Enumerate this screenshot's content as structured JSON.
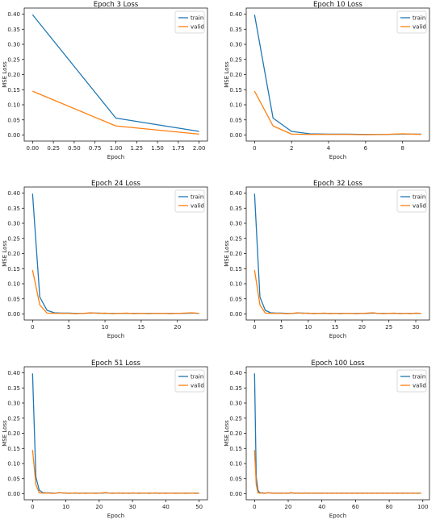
{
  "colors": {
    "train": "#1f77b4",
    "valid": "#ff7f0e"
  },
  "chart_data": [
    {
      "type": "line",
      "title": "Epoch 3 Loss",
      "xlabel": "Epoch",
      "ylabel": "MSE Loss",
      "xlim": [
        -0.1,
        2.1
      ],
      "ylim": [
        -0.02,
        0.42
      ],
      "xticks": [
        0.0,
        0.25,
        0.5,
        0.75,
        1.0,
        1.25,
        1.5,
        1.75,
        2.0
      ],
      "xtick_labels": [
        "0.00",
        "0.25",
        "0.50",
        "0.75",
        "1.00",
        "1.25",
        "1.50",
        "1.75",
        "2.00"
      ],
      "yticks": [
        0.0,
        0.05,
        0.1,
        0.15,
        0.2,
        0.25,
        0.3,
        0.35,
        0.4
      ],
      "ytick_labels": [
        "0.00",
        "0.05",
        "0.10",
        "0.15",
        "0.20",
        "0.25",
        "0.30",
        "0.35",
        "0.40"
      ],
      "legend": "top-right",
      "grid": false,
      "series": [
        {
          "name": "train",
          "x": [
            0,
            1,
            2
          ],
          "y": [
            0.398,
            0.056,
            0.012
          ]
        },
        {
          "name": "valid",
          "x": [
            0,
            1,
            2
          ],
          "y": [
            0.145,
            0.03,
            0.003
          ]
        }
      ]
    },
    {
      "type": "line",
      "title": "Epoch 10 Loss",
      "xlabel": "Epoch",
      "ylabel": "MSE Loss",
      "xlim": [
        -0.45,
        9.45
      ],
      "ylim": [
        -0.02,
        0.42
      ],
      "xticks": [
        0,
        2,
        4,
        6,
        8
      ],
      "xtick_labels": [
        "0",
        "2",
        "4",
        "6",
        "8"
      ],
      "yticks": [
        0.0,
        0.05,
        0.1,
        0.15,
        0.2,
        0.25,
        0.3,
        0.35,
        0.4
      ],
      "ytick_labels": [
        "0.00",
        "0.05",
        "0.10",
        "0.15",
        "0.20",
        "0.25",
        "0.30",
        "0.35",
        "0.40"
      ],
      "legend": "top-right",
      "grid": false,
      "series": [
        {
          "name": "train",
          "x": [
            0,
            1,
            2,
            3,
            4,
            5,
            6,
            7,
            8,
            9
          ],
          "y": [
            0.398,
            0.056,
            0.012,
            0.004,
            0.003,
            0.003,
            0.002,
            0.002,
            0.003,
            0.003
          ]
        },
        {
          "name": "valid",
          "x": [
            0,
            1,
            2,
            3,
            4,
            5,
            6,
            7,
            8,
            9
          ],
          "y": [
            0.145,
            0.03,
            0.003,
            0.002,
            0.002,
            0.002,
            0.001,
            0.002,
            0.004,
            0.002
          ]
        }
      ]
    },
    {
      "type": "line",
      "title": "Epoch 24 Loss",
      "xlabel": "Epoch",
      "ylabel": "MSE Loss",
      "xlim": [
        -1.15,
        24.15
      ],
      "ylim": [
        -0.02,
        0.42
      ],
      "xticks": [
        0,
        5,
        10,
        15,
        20
      ],
      "xtick_labels": [
        "0",
        "5",
        "10",
        "15",
        "20"
      ],
      "yticks": [
        0.0,
        0.05,
        0.1,
        0.15,
        0.2,
        0.25,
        0.3,
        0.35,
        0.4
      ],
      "ytick_labels": [
        "0.00",
        "0.05",
        "0.10",
        "0.15",
        "0.20",
        "0.25",
        "0.30",
        "0.35",
        "0.40"
      ],
      "legend": "top-right",
      "grid": false,
      "series": [
        {
          "name": "train",
          "x": [
            0,
            1,
            2,
            3,
            4,
            5,
            6,
            7,
            8,
            9,
            10,
            11,
            12,
            13,
            14,
            15,
            16,
            17,
            18,
            19,
            20,
            21,
            22,
            23
          ],
          "y": [
            0.398,
            0.056,
            0.012,
            0.004,
            0.003,
            0.003,
            0.002,
            0.002,
            0.003,
            0.003,
            0.002,
            0.002,
            0.002,
            0.002,
            0.002,
            0.002,
            0.002,
            0.002,
            0.002,
            0.002,
            0.002,
            0.002,
            0.003,
            0.002
          ]
        },
        {
          "name": "valid",
          "x": [
            0,
            1,
            2,
            3,
            4,
            5,
            6,
            7,
            8,
            9,
            10,
            11,
            12,
            13,
            14,
            15,
            16,
            17,
            18,
            19,
            20,
            21,
            22,
            23
          ],
          "y": [
            0.145,
            0.03,
            0.003,
            0.002,
            0.002,
            0.002,
            0.001,
            0.002,
            0.004,
            0.002,
            0.003,
            0.001,
            0.002,
            0.003,
            0.001,
            0.002,
            0.001,
            0.002,
            0.002,
            0.001,
            0.002,
            0.003,
            0.004,
            0.002
          ]
        }
      ]
    },
    {
      "type": "line",
      "title": "Epoch 32 Loss",
      "xlabel": "Epoch",
      "ylabel": "MSE Loss",
      "xlim": [
        -1.55,
        32.55
      ],
      "ylim": [
        -0.02,
        0.42
      ],
      "xticks": [
        0,
        5,
        10,
        15,
        20,
        25,
        30
      ],
      "xtick_labels": [
        "0",
        "5",
        "10",
        "15",
        "20",
        "25",
        "30"
      ],
      "yticks": [
        0.0,
        0.05,
        0.1,
        0.15,
        0.2,
        0.25,
        0.3,
        0.35,
        0.4
      ],
      "ytick_labels": [
        "0.00",
        "0.05",
        "0.10",
        "0.15",
        "0.20",
        "0.25",
        "0.30",
        "0.35",
        "0.40"
      ],
      "legend": "top-right",
      "grid": false,
      "series": [
        {
          "name": "train",
          "x": [
            0,
            1,
            2,
            3,
            4,
            5,
            6,
            7,
            8,
            9,
            10,
            11,
            12,
            13,
            14,
            15,
            16,
            17,
            18,
            19,
            20,
            21,
            22,
            23,
            24,
            25,
            26,
            27,
            28,
            29,
            30,
            31
          ],
          "y": [
            0.398,
            0.056,
            0.012,
            0.004,
            0.003,
            0.003,
            0.002,
            0.002,
            0.003,
            0.003,
            0.002,
            0.002,
            0.002,
            0.002,
            0.002,
            0.002,
            0.002,
            0.002,
            0.002,
            0.002,
            0.002,
            0.002,
            0.003,
            0.002,
            0.002,
            0.002,
            0.002,
            0.002,
            0.002,
            0.002,
            0.002,
            0.002
          ]
        },
        {
          "name": "valid",
          "x": [
            0,
            1,
            2,
            3,
            4,
            5,
            6,
            7,
            8,
            9,
            10,
            11,
            12,
            13,
            14,
            15,
            16,
            17,
            18,
            19,
            20,
            21,
            22,
            23,
            24,
            25,
            26,
            27,
            28,
            29,
            30,
            31
          ],
          "y": [
            0.145,
            0.03,
            0.003,
            0.002,
            0.002,
            0.002,
            0.001,
            0.002,
            0.004,
            0.002,
            0.003,
            0.001,
            0.002,
            0.003,
            0.001,
            0.002,
            0.001,
            0.002,
            0.002,
            0.001,
            0.002,
            0.003,
            0.004,
            0.002,
            0.001,
            0.002,
            0.003,
            0.001,
            0.002,
            0.001,
            0.003,
            0.002
          ]
        }
      ]
    },
    {
      "type": "line",
      "title": "Epoch 51 Loss",
      "xlabel": "Epoch",
      "ylabel": "MSE Loss",
      "xlim": [
        -2.5,
        52.5
      ],
      "ylim": [
        -0.02,
        0.42
      ],
      "xticks": [
        0,
        10,
        20,
        30,
        40,
        50
      ],
      "xtick_labels": [
        "0",
        "10",
        "20",
        "30",
        "40",
        "50"
      ],
      "yticks": [
        0.0,
        0.05,
        0.1,
        0.15,
        0.2,
        0.25,
        0.3,
        0.35,
        0.4
      ],
      "ytick_labels": [
        "0.00",
        "0.05",
        "0.10",
        "0.15",
        "0.20",
        "0.25",
        "0.30",
        "0.35",
        "0.40"
      ],
      "legend": "top-right",
      "grid": false,
      "series": [
        {
          "name": "train",
          "x_start": 0,
          "x_step": 1,
          "y": [
            0.398,
            0.056,
            0.012,
            0.004,
            0.003,
            0.003,
            0.002,
            0.002,
            0.003,
            0.003,
            0.002,
            0.002,
            0.002,
            0.002,
            0.002,
            0.002,
            0.002,
            0.002,
            0.002,
            0.002,
            0.002,
            0.002,
            0.003,
            0.002,
            0.002,
            0.002,
            0.002,
            0.002,
            0.002,
            0.002,
            0.002,
            0.002,
            0.002,
            0.002,
            0.002,
            0.002,
            0.002,
            0.002,
            0.002,
            0.002,
            0.002,
            0.002,
            0.002,
            0.002,
            0.002,
            0.002,
            0.002,
            0.002,
            0.002,
            0.002,
            0.002
          ]
        },
        {
          "name": "valid",
          "x_start": 0,
          "x_step": 1,
          "y": [
            0.145,
            0.03,
            0.003,
            0.002,
            0.002,
            0.002,
            0.001,
            0.002,
            0.004,
            0.002,
            0.003,
            0.001,
            0.002,
            0.003,
            0.001,
            0.002,
            0.001,
            0.002,
            0.002,
            0.001,
            0.002,
            0.003,
            0.004,
            0.002,
            0.001,
            0.002,
            0.003,
            0.001,
            0.002,
            0.001,
            0.003,
            0.002,
            0.001,
            0.002,
            0.002,
            0.001,
            0.002,
            0.003,
            0.001,
            0.002,
            0.001,
            0.002,
            0.002,
            0.001,
            0.002,
            0.002,
            0.001,
            0.002,
            0.002,
            0.001,
            0.002
          ]
        }
      ]
    },
    {
      "type": "line",
      "title": "Epoch 100 Loss",
      "xlabel": "Epoch",
      "ylabel": "MSE Loss",
      "xlim": [
        -4.95,
        103.95
      ],
      "ylim": [
        -0.02,
        0.42
      ],
      "xticks": [
        0,
        20,
        40,
        60,
        80,
        100
      ],
      "xtick_labels": [
        "0",
        "20",
        "40",
        "60",
        "80",
        "100"
      ],
      "yticks": [
        0.0,
        0.05,
        0.1,
        0.15,
        0.2,
        0.25,
        0.3,
        0.35,
        0.4
      ],
      "ytick_labels": [
        "0.00",
        "0.05",
        "0.10",
        "0.15",
        "0.20",
        "0.25",
        "0.30",
        "0.35",
        "0.40"
      ],
      "legend": "top-right",
      "grid": false,
      "series": [
        {
          "name": "train",
          "x_start": 0,
          "x_step": 1,
          "y": [
            0.398,
            0.056,
            0.012,
            0.004,
            0.003,
            0.003,
            0.002,
            0.002,
            0.003,
            0.003,
            0.002,
            0.002,
            0.002,
            0.002,
            0.002,
            0.002,
            0.002,
            0.002,
            0.002,
            0.002,
            0.002,
            0.002,
            0.003,
            0.002,
            0.002,
            0.002,
            0.002,
            0.002,
            0.002,
            0.002,
            0.002,
            0.002,
            0.002,
            0.002,
            0.002,
            0.002,
            0.002,
            0.002,
            0.002,
            0.002,
            0.002,
            0.002,
            0.002,
            0.002,
            0.002,
            0.002,
            0.002,
            0.002,
            0.002,
            0.002,
            0.002,
            0.002,
            0.002,
            0.002,
            0.002,
            0.002,
            0.002,
            0.002,
            0.002,
            0.002,
            0.002,
            0.002,
            0.002,
            0.002,
            0.002,
            0.002,
            0.002,
            0.002,
            0.002,
            0.002,
            0.002,
            0.002,
            0.002,
            0.002,
            0.002,
            0.002,
            0.002,
            0.002,
            0.002,
            0.002,
            0.002,
            0.002,
            0.002,
            0.002,
            0.002,
            0.002,
            0.002,
            0.002,
            0.002,
            0.002,
            0.002,
            0.002,
            0.002,
            0.002,
            0.002,
            0.002,
            0.002,
            0.002,
            0.002,
            0.002
          ]
        },
        {
          "name": "valid",
          "x_start": 0,
          "x_step": 1,
          "y": [
            0.145,
            0.03,
            0.003,
            0.002,
            0.002,
            0.002,
            0.001,
            0.002,
            0.004,
            0.002,
            0.003,
            0.001,
            0.002,
            0.003,
            0.001,
            0.002,
            0.001,
            0.002,
            0.002,
            0.001,
            0.002,
            0.003,
            0.004,
            0.002,
            0.001,
            0.002,
            0.003,
            0.001,
            0.002,
            0.001,
            0.003,
            0.002,
            0.001,
            0.002,
            0.002,
            0.001,
            0.002,
            0.003,
            0.001,
            0.002,
            0.001,
            0.002,
            0.002,
            0.001,
            0.002,
            0.002,
            0.001,
            0.002,
            0.002,
            0.001,
            0.002,
            0.002,
            0.001,
            0.002,
            0.002,
            0.001,
            0.002,
            0.002,
            0.001,
            0.002,
            0.002,
            0.001,
            0.002,
            0.002,
            0.001,
            0.002,
            0.002,
            0.001,
            0.002,
            0.002,
            0.001,
            0.002,
            0.002,
            0.001,
            0.002,
            0.002,
            0.001,
            0.002,
            0.002,
            0.001,
            0.002,
            0.002,
            0.001,
            0.002,
            0.002,
            0.001,
            0.002,
            0.002,
            0.001,
            0.002,
            0.002,
            0.001,
            0.002,
            0.002,
            0.001,
            0.002,
            0.002,
            0.001,
            0.002,
            0.002
          ]
        }
      ]
    }
  ]
}
